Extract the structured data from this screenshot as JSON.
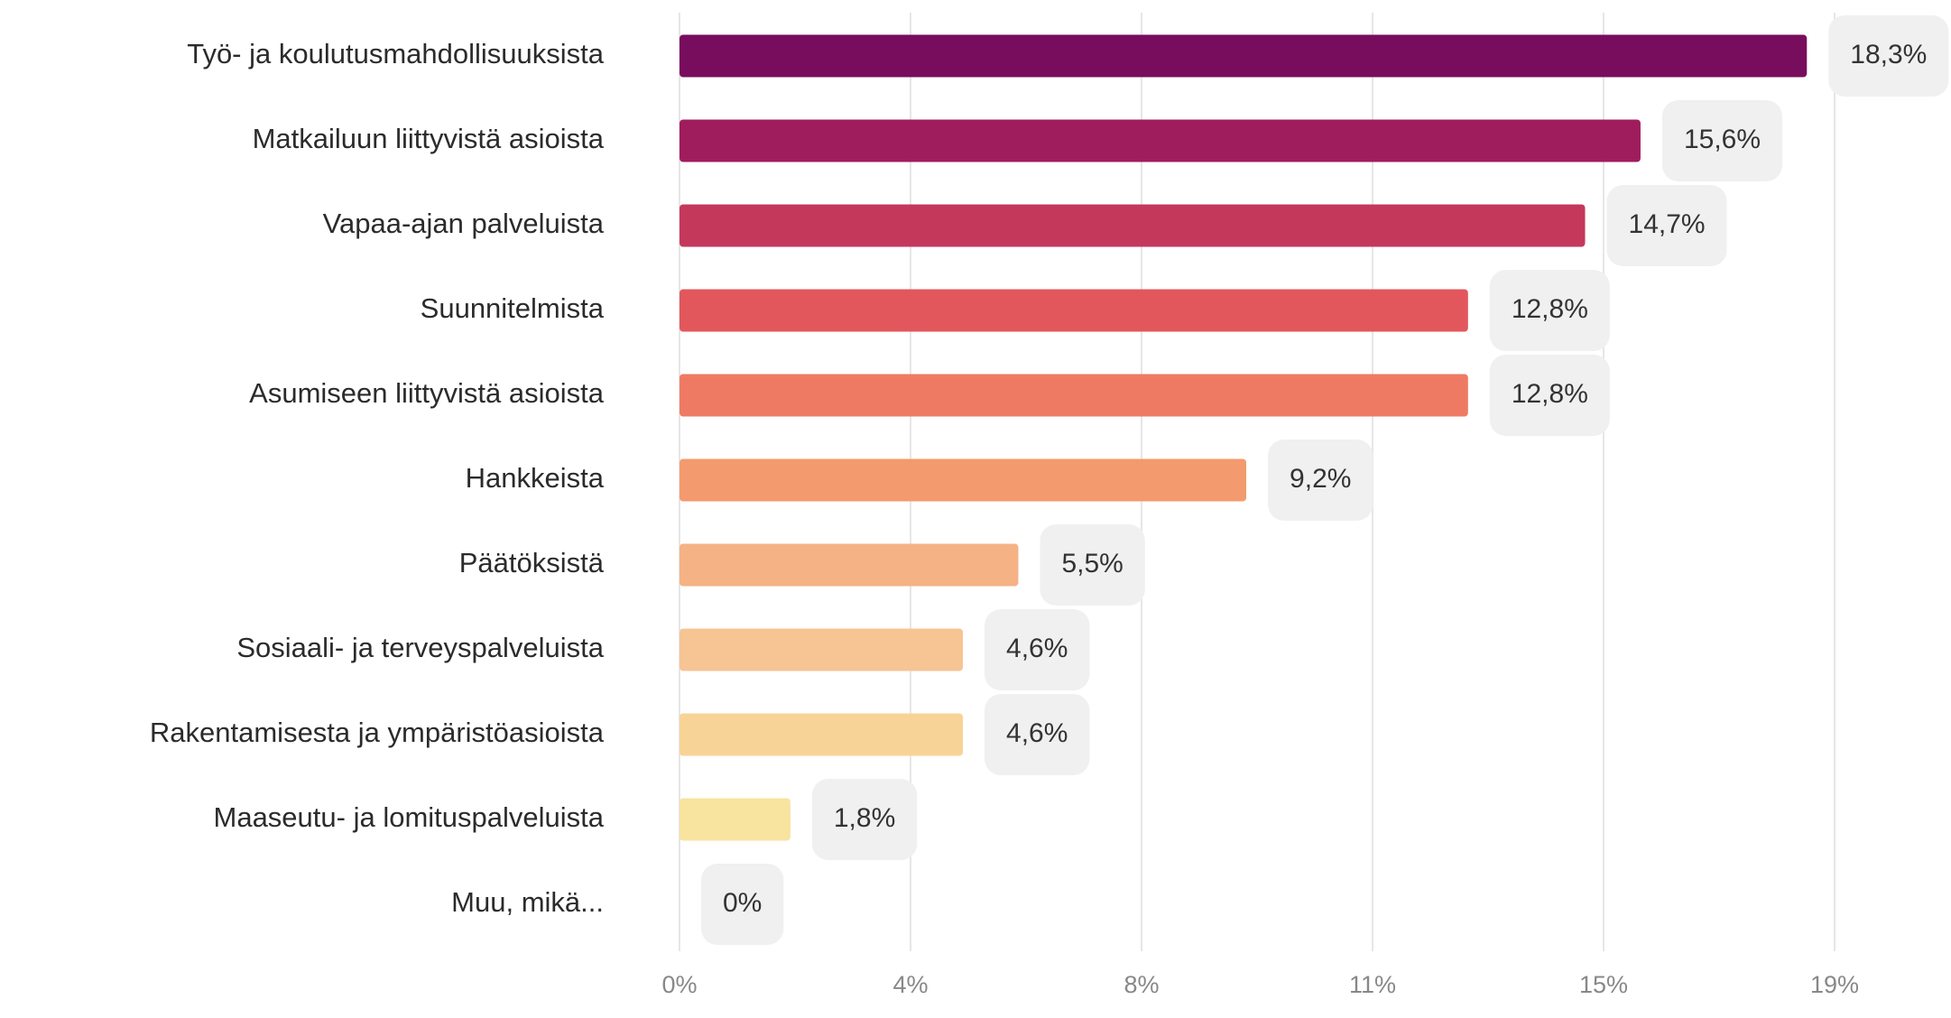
{
  "chart_data": {
    "type": "bar",
    "orientation": "horizontal",
    "categories": [
      "Työ- ja koulutusmahdollisuuksista",
      "Matkailuun liittyvistä asioista",
      "Vapaa-ajan palveluista",
      "Suunnitelmista",
      "Asumiseen liittyvistä asioista",
      "Hankkeista",
      "Päätöksistä",
      "Sosiaali- ja terveyspalveluista",
      "Rakentamisesta ja ympäristöasioista",
      "Maaseutu- ja lomituspalveluista",
      "Muu, mikä..."
    ],
    "values": [
      18.3,
      15.6,
      14.7,
      12.8,
      12.8,
      9.2,
      5.5,
      4.6,
      4.6,
      1.8,
      0
    ],
    "value_labels": [
      "18,3%",
      "15,6%",
      "14,7%",
      "12,8%",
      "12,8%",
      "9,2%",
      "5,5%",
      "4,6%",
      "4,6%",
      "1,8%",
      "0%"
    ],
    "colors": [
      "#780d5e",
      "#a01d5d",
      "#c4385c",
      "#e2575b",
      "#ef7a63",
      "#f39a6e",
      "#f5b284",
      "#f7c493",
      "#f8d397",
      "#f8e39f",
      "#fbefb5"
    ],
    "xlim": [
      0,
      18.75
    ],
    "xticks": [
      {
        "value": 0,
        "label": "0%"
      },
      {
        "value": 3.75,
        "label": "4%"
      },
      {
        "value": 7.5,
        "label": "8%"
      },
      {
        "value": 11.25,
        "label": "11%"
      },
      {
        "value": 15,
        "label": "15%"
      },
      {
        "value": 18.75,
        "label": "19%"
      }
    ],
    "grid": true
  }
}
